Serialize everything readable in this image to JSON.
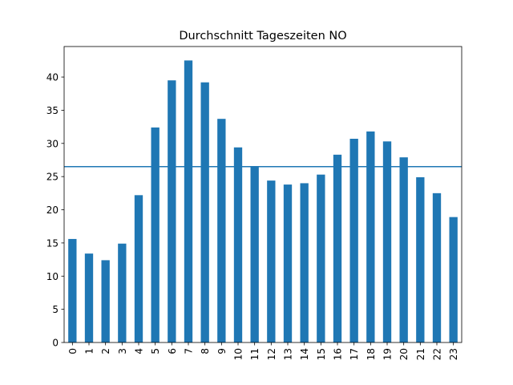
{
  "chart_data": {
    "type": "bar",
    "title": "Durchschnitt Tageszeiten NO",
    "xlabel": "",
    "ylabel": "",
    "categories": [
      "0",
      "1",
      "2",
      "3",
      "4",
      "5",
      "6",
      "7",
      "8",
      "9",
      "10",
      "11",
      "12",
      "13",
      "14",
      "15",
      "16",
      "17",
      "18",
      "19",
      "20",
      "21",
      "22",
      "23"
    ],
    "values": [
      15.6,
      13.4,
      12.4,
      14.9,
      22.2,
      32.4,
      39.5,
      42.5,
      39.2,
      33.7,
      29.4,
      26.5,
      24.4,
      23.8,
      24.0,
      25.3,
      28.3,
      30.7,
      31.8,
      30.3,
      27.9,
      24.9,
      22.5,
      18.9
    ],
    "mean_line": 26.5,
    "ylim": [
      0,
      44.6
    ],
    "yticks": [
      0,
      5,
      10,
      15,
      20,
      25,
      30,
      35,
      40
    ],
    "grid": false,
    "bar_color": "#1f77b4",
    "line_color": "#1f77b4"
  }
}
